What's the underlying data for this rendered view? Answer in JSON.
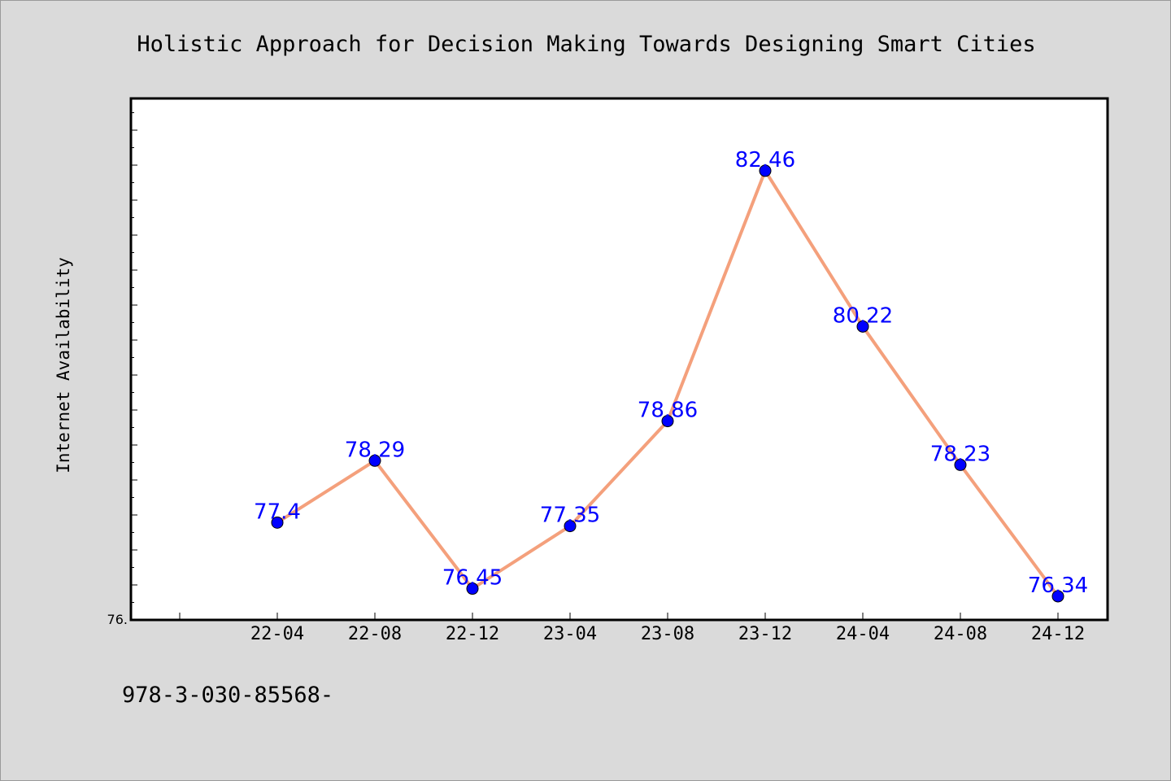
{
  "chart_data": {
    "type": "line",
    "title": "Holistic Approach for Decision Making Towards Designing Smart Cities",
    "xlabel": "",
    "ylabel": "Internet Availability",
    "categories": [
      "22-04",
      "22-08",
      "22-12",
      "23-04",
      "23-08",
      "23-12",
      "24-04",
      "24-08",
      "24-12"
    ],
    "series": [
      {
        "values": [
          77.4,
          78.29,
          76.45,
          77.35,
          78.86,
          82.46,
          80.22,
          78.23,
          76.34
        ]
      }
    ],
    "data_labels": [
      "77.4",
      "78.29",
      "76.45",
      "77.35",
      "78.86",
      "82.46",
      "80.22",
      "78.23",
      "76.34"
    ],
    "ylim": [
      76.0,
      83.5
    ],
    "y_tick_label": "76.",
    "grid": false,
    "legend": "none"
  },
  "footer": {
    "text": "978-3-030-85568-"
  },
  "colors": {
    "line": "#f4a07c",
    "marker": "#0000ff",
    "label": "#0000ff",
    "plot_background": "#ffffff",
    "page_background": "#dadada"
  }
}
